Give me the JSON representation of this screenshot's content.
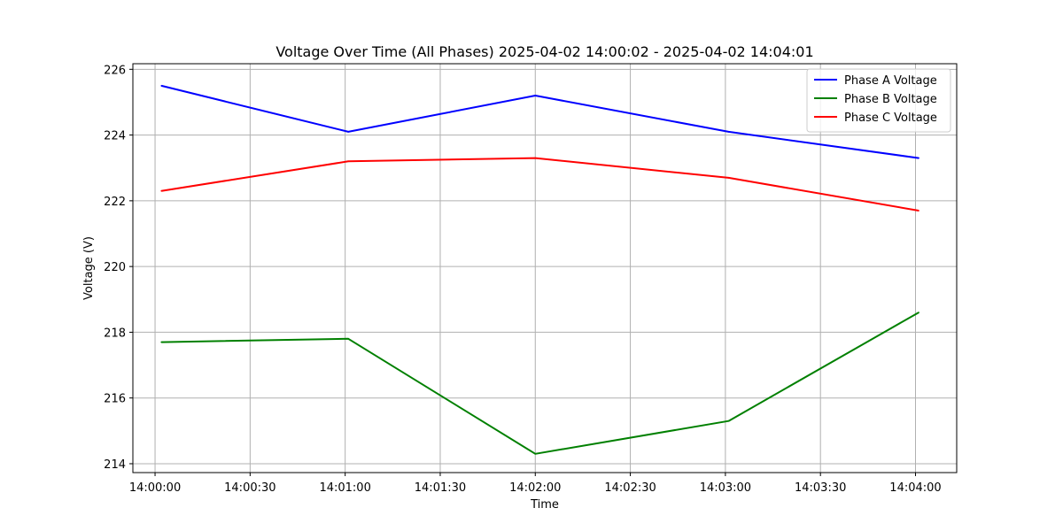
{
  "chart_data": {
    "type": "line",
    "title": "Voltage Over Time (All Phases) 2025-04-02 14:00:02 - 2025-04-02 14:04:01",
    "xlabel": "Time",
    "ylabel": "Voltage (V)",
    "x": [
      "14:00:02",
      "14:01:01",
      "14:02:00",
      "14:03:01",
      "14:04:01"
    ],
    "x_ticks": [
      "14:00:00",
      "14:00:30",
      "14:01:00",
      "14:01:30",
      "14:02:00",
      "14:02:30",
      "14:03:00",
      "14:03:30",
      "14:04:00"
    ],
    "xlim": [
      "13:59:53",
      "14:04:13"
    ],
    "y_ticks": [
      214,
      216,
      218,
      220,
      222,
      224,
      226
    ],
    "ylim": [
      213.73,
      226.17
    ],
    "grid": true,
    "legend_position": "top-right",
    "series": [
      {
        "name": "Phase A Voltage",
        "color": "#0000ff",
        "values": [
          225.5,
          224.1,
          225.2,
          224.1,
          223.3
        ]
      },
      {
        "name": "Phase B Voltage",
        "color": "#008000",
        "values": [
          217.7,
          217.8,
          214.3,
          215.3,
          218.6
        ]
      },
      {
        "name": "Phase C Voltage",
        "color": "#ff0000",
        "values": [
          222.3,
          223.2,
          223.3,
          222.7,
          221.7
        ]
      }
    ]
  }
}
